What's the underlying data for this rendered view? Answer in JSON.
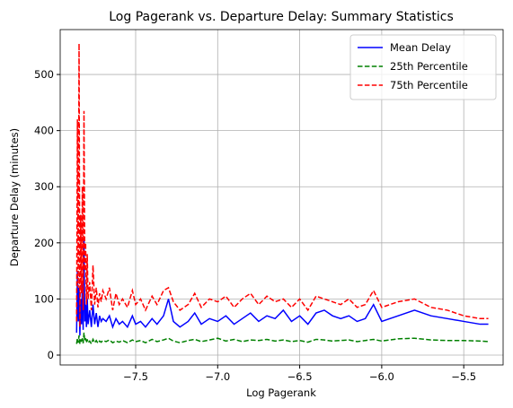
{
  "chart_data": {
    "type": "line",
    "title": "Log Pagerank vs. Departure Delay: Summary Statistics",
    "xlabel": "Log Pagerank",
    "ylabel": "Departure Delay (minutes)",
    "x": [
      -7.86,
      -7.855,
      -7.85,
      -7.845,
      -7.84,
      -7.835,
      -7.83,
      -7.825,
      -7.82,
      -7.815,
      -7.81,
      -7.805,
      -7.8,
      -7.795,
      -7.79,
      -7.78,
      -7.77,
      -7.76,
      -7.75,
      -7.74,
      -7.73,
      -7.72,
      -7.71,
      -7.7,
      -7.68,
      -7.66,
      -7.64,
      -7.62,
      -7.6,
      -7.58,
      -7.55,
      -7.52,
      -7.5,
      -7.47,
      -7.44,
      -7.4,
      -7.37,
      -7.33,
      -7.3,
      -7.27,
      -7.23,
      -7.18,
      -7.14,
      -7.1,
      -7.05,
      -7.0,
      -6.95,
      -6.9,
      -6.85,
      -6.8,
      -6.75,
      -6.7,
      -6.65,
      -6.6,
      -6.55,
      -6.5,
      -6.45,
      -6.4,
      -6.35,
      -6.3,
      -6.25,
      -6.2,
      -6.15,
      -6.1,
      -6.05,
      -6.0,
      -5.95,
      -5.9,
      -5.8,
      -5.7,
      -5.6,
      -5.5,
      -5.4,
      -5.35
    ],
    "series": [
      {
        "name": "Mean Delay",
        "color": "#0000ff",
        "dash": false,
        "values": [
          40,
          150,
          60,
          120,
          35,
          100,
          55,
          130,
          45,
          210,
          60,
          90,
          50,
          100,
          55,
          80,
          50,
          90,
          55,
          75,
          50,
          70,
          60,
          65,
          60,
          70,
          50,
          65,
          55,
          60,
          50,
          70,
          55,
          60,
          50,
          65,
          55,
          70,
          100,
          60,
          50,
          60,
          75,
          55,
          65,
          60,
          70,
          55,
          65,
          75,
          60,
          70,
          65,
          80,
          60,
          70,
          55,
          75,
          80,
          70,
          65,
          70,
          60,
          65,
          90,
          60,
          65,
          70,
          80,
          70,
          65,
          60,
          55,
          55
        ]
      },
      {
        "name": "25th Percentile",
        "color": "#008000",
        "dash": true,
        "values": [
          20,
          30,
          22,
          35,
          20,
          28,
          22,
          30,
          21,
          40,
          25,
          30,
          22,
          28,
          22,
          25,
          20,
          28,
          22,
          26,
          21,
          25,
          23,
          26,
          24,
          27,
          22,
          25,
          23,
          26,
          22,
          27,
          24,
          26,
          22,
          28,
          24,
          27,
          30,
          25,
          22,
          26,
          28,
          24,
          27,
          30,
          25,
          28,
          24,
          27,
          26,
          28,
          25,
          27,
          24,
          26,
          23,
          28,
          27,
          25,
          26,
          27,
          24,
          26,
          28,
          25,
          27,
          29,
          30,
          27,
          26,
          26,
          25,
          24
        ]
      },
      {
        "name": "75th Percentile",
        "color": "#ff0000",
        "dash": true,
        "values": [
          60,
          420,
          120,
          555,
          50,
          250,
          110,
          300,
          80,
          435,
          150,
          200,
          90,
          180,
          100,
          130,
          80,
          160,
          90,
          120,
          85,
          110,
          95,
          115,
          100,
          120,
          80,
          110,
          90,
          100,
          85,
          115,
          90,
          100,
          80,
          105,
          90,
          115,
          120,
          95,
          80,
          90,
          110,
          85,
          100,
          95,
          105,
          85,
          100,
          110,
          90,
          105,
          95,
          100,
          85,
          100,
          80,
          105,
          100,
          95,
          90,
          100,
          85,
          90,
          115,
          85,
          90,
          95,
          100,
          85,
          80,
          70,
          65,
          65
        ]
      }
    ],
    "xlim": [
      -7.96,
      -5.26
    ],
    "ylim": [
      -17.6,
      580
    ],
    "xticks": [
      {
        "value": -7.5,
        "label": "−7.5"
      },
      {
        "value": -7.0,
        "label": "−7.0"
      },
      {
        "value": -6.5,
        "label": "−6.5"
      },
      {
        "value": -6.0,
        "label": "−6.0"
      },
      {
        "value": -5.5,
        "label": "−5.5"
      }
    ],
    "yticks": [
      0,
      100,
      200,
      300,
      400,
      500
    ],
    "grid": true,
    "legend": "upper right"
  }
}
